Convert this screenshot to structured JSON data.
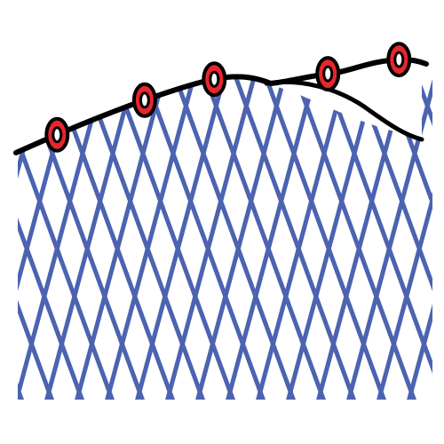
{
  "illustration": {
    "subject": "net-with-floats",
    "colors": {
      "background": "#ffffff",
      "mesh": "#4b63b0",
      "rope": "#000000",
      "float_fill": "#e8262c",
      "float_outline": "#000000",
      "float_hole": "#ffffff"
    },
    "float_count": 5,
    "icons": [
      "float-icon"
    ]
  }
}
